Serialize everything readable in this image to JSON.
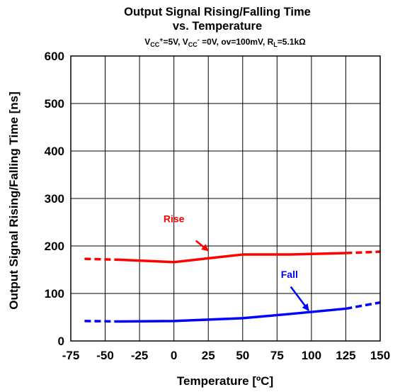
{
  "chart_data": {
    "type": "line",
    "title_line1": "Output Signal Rising/Falling Time",
    "title_line2": "vs. Temperature",
    "conditions": {
      "vcc_plus": "=5V, V",
      "vcc_minus": " =0V, ov=100mV, R",
      "rl": "=5.1kΩ"
    },
    "xlabel": "Temperature [ºC]",
    "ylabel": "Output Signal Rising/Falling Time [ns]",
    "xlim": [
      -75,
      150
    ],
    "ylim": [
      0,
      600
    ],
    "x_ticks": [
      -75,
      -50,
      -25,
      0,
      25,
      50,
      75,
      100,
      125,
      150
    ],
    "x_tick_labels": [
      "-75",
      "-50",
      "-25",
      "0",
      "25",
      "50",
      "75",
      "100",
      "125",
      "150"
    ],
    "y_ticks": [
      0,
      100,
      200,
      300,
      400,
      500,
      600
    ],
    "y_tick_labels": [
      "0",
      "100",
      "200",
      "300",
      "400",
      "500",
      "600"
    ],
    "grid": true,
    "series": [
      {
        "name": "Rise",
        "color": "#ff0000",
        "solid": {
          "x": [
            -40,
            0,
            25,
            50,
            85,
            125
          ],
          "y": [
            171,
            166,
            174,
            182,
            182,
            185
          ]
        },
        "dashed": [
          {
            "x": [
              -65,
              -40
            ],
            "y": [
              173,
              171
            ]
          },
          {
            "x": [
              125,
              150
            ],
            "y": [
              185,
              188
            ]
          }
        ],
        "label_at": {
          "x": 0,
          "y": 250
        },
        "arrow_from": {
          "x": 16,
          "y": 211
        },
        "arrow_to": {
          "x": 25,
          "y": 190
        }
      },
      {
        "name": "Fall",
        "color": "#0000ff",
        "solid": {
          "x": [
            -40,
            0,
            25,
            50,
            85,
            125
          ],
          "y": [
            41,
            42,
            45,
            48,
            57,
            68
          ]
        },
        "dashed": [
          {
            "x": [
              -65,
              -40
            ],
            "y": [
              42,
              41
            ]
          },
          {
            "x": [
              125,
              150
            ],
            "y": [
              68,
              81
            ]
          }
        ],
        "label_at": {
          "x": 84,
          "y": 133
        },
        "arrow_from": {
          "x": 85,
          "y": 114
        },
        "arrow_to": {
          "x": 98,
          "y": 64
        }
      }
    ]
  }
}
